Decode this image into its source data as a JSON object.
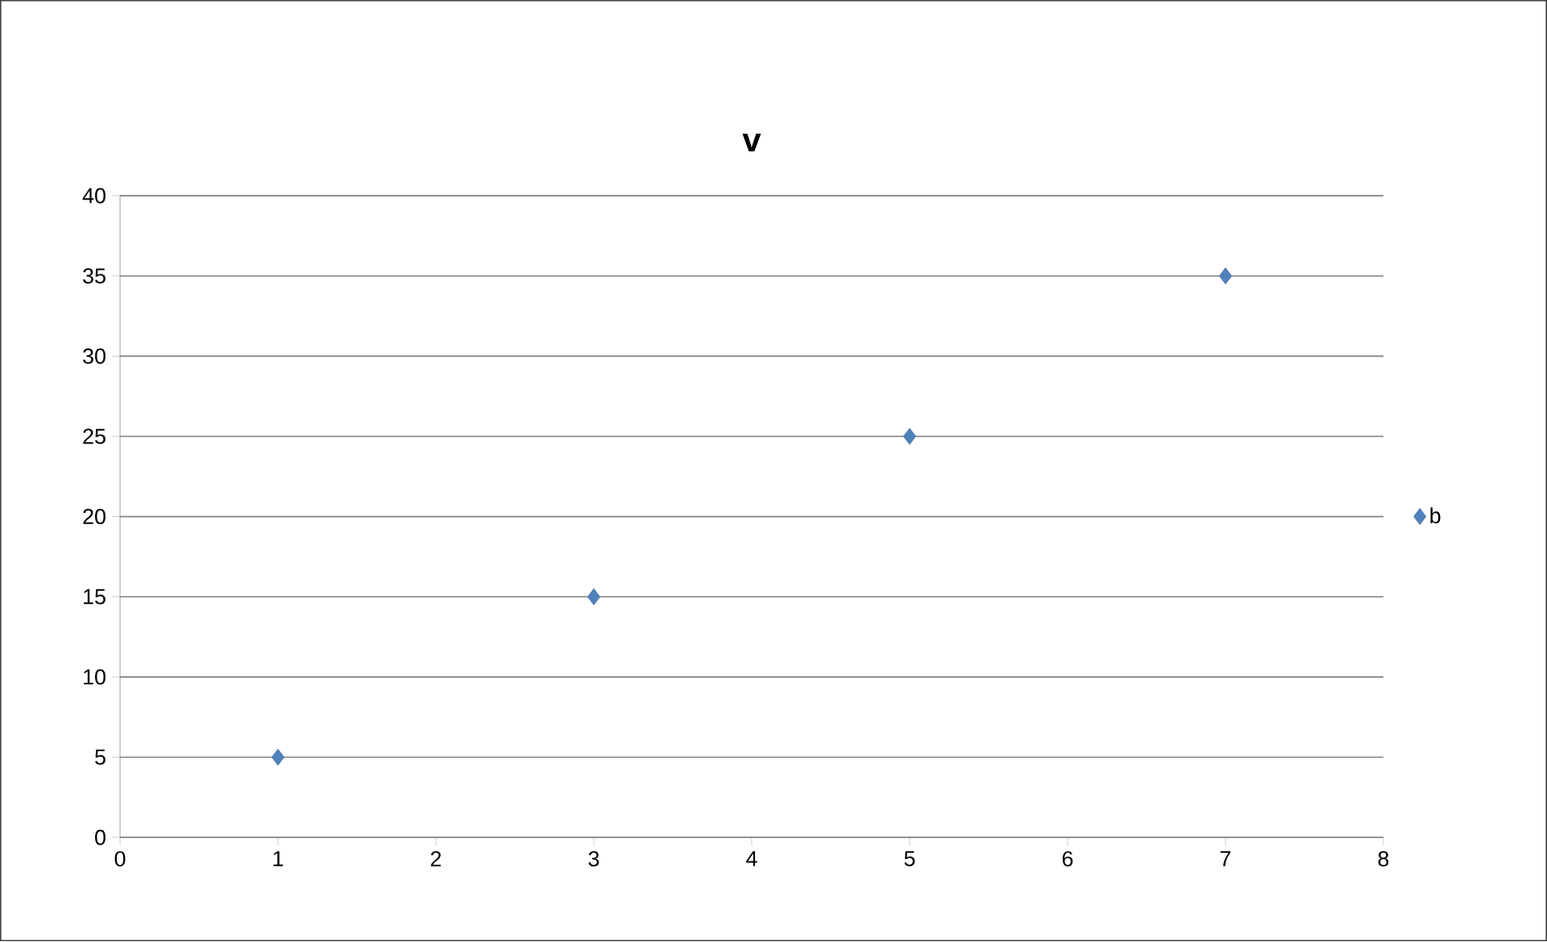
{
  "chart_data": {
    "type": "scatter",
    "title": "v",
    "series": [
      {
        "name": "b",
        "color": "#4f81bd",
        "x": [
          1,
          3,
          5,
          7
        ],
        "values": [
          5,
          15,
          25,
          35
        ]
      }
    ],
    "xlim": [
      0,
      8
    ],
    "xticks": [
      0,
      1,
      2,
      3,
      4,
      5,
      6,
      7,
      8
    ],
    "ylim": [
      0,
      40
    ],
    "yticks": [
      0,
      5,
      10,
      15,
      20,
      25,
      30,
      35,
      40
    ],
    "grid": "y",
    "legend": "right",
    "marker": "diamond"
  }
}
